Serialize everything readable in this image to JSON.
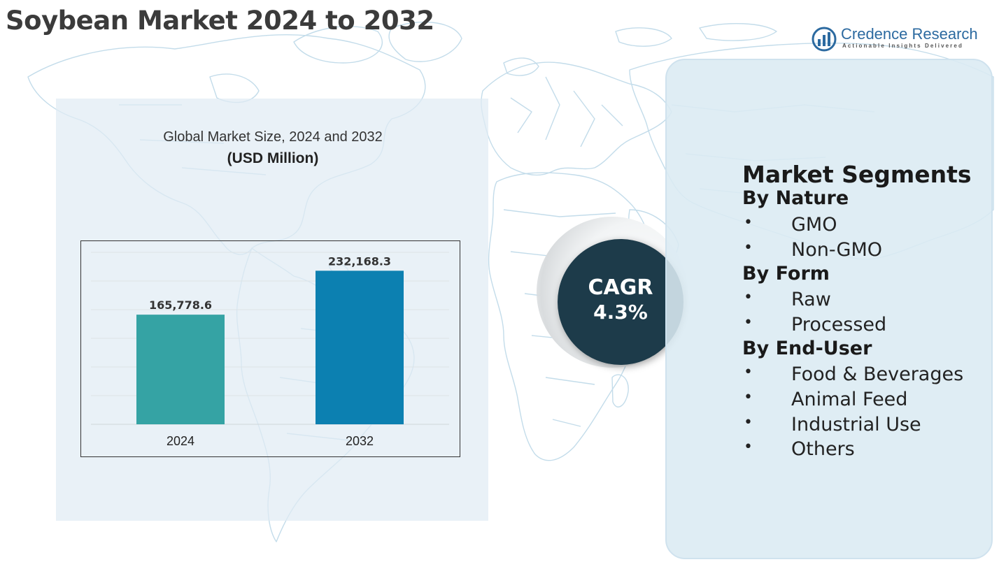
{
  "page_title": "Soybean Market 2024 to 2032",
  "logo": {
    "name": "Credence Research",
    "tagline": "Actionable Insights Delivered",
    "icon": "bar-chart-circle-icon"
  },
  "chart": {
    "subtitle": "Global Market Size, 2024 and 2032",
    "units": "(USD Million)"
  },
  "chart_data": {
    "type": "bar",
    "categories": [
      "2024",
      "2032"
    ],
    "values": [
      165778.6,
      232168.3
    ],
    "value_labels": [
      "165,778.6",
      "232,168.3"
    ],
    "bar_colors": [
      "#35a3a4",
      "#0c80b1"
    ],
    "ylim": [
      0,
      260000
    ],
    "grid": true,
    "xlabel": "",
    "ylabel": ""
  },
  "cagr": {
    "label": "CAGR",
    "value": "4.3%"
  },
  "segments": {
    "title": "Market Segments",
    "bullet": "•",
    "groups": [
      {
        "heading": "By Nature",
        "items": [
          "GMO",
          "Non-GMO"
        ]
      },
      {
        "heading": "By Form",
        "items": [
          "Raw",
          "Processed"
        ]
      },
      {
        "heading": "By End-User",
        "items": [
          "Food & Beverages",
          "Animal Feed",
          "Industrial Use",
          "Others"
        ]
      }
    ]
  },
  "colors": {
    "title": "#3b3b3b",
    "cagr_circle": "#1d3b4a",
    "panel": "#e0ecf4",
    "map_outline": "#b9d6e6"
  }
}
